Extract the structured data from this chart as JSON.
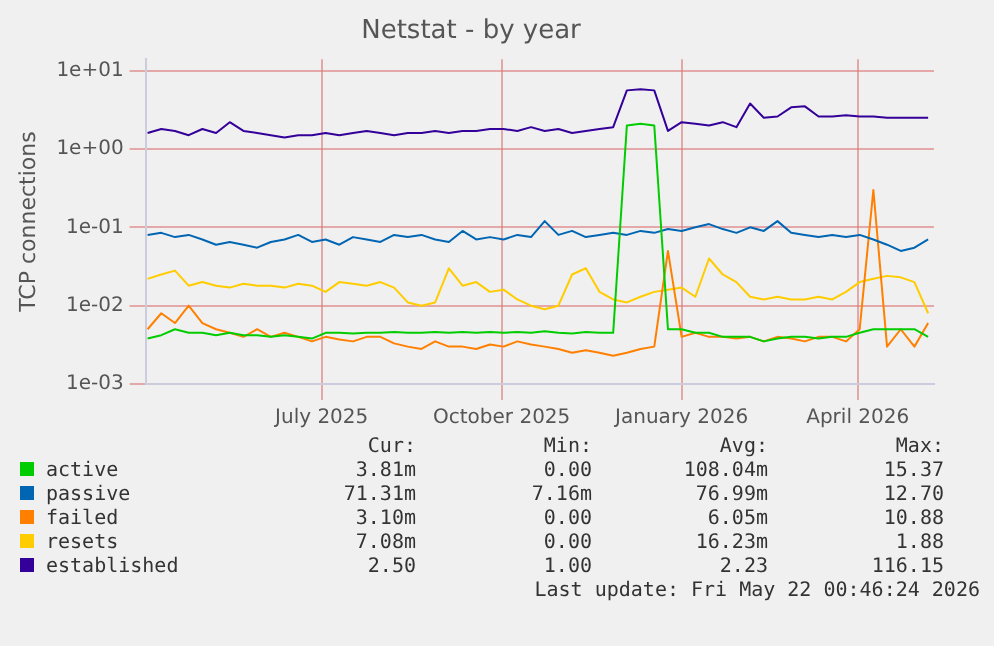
{
  "chart_data": {
    "type": "line",
    "title": "Netstat - by year",
    "ylabel": "TCP connections",
    "log": "y",
    "grid": true,
    "legend": "bottom",
    "marker": "none",
    "line_style": "solid",
    "xlim": [
      "2025-04-02",
      "2026-05-10"
    ],
    "xticks": [
      {
        "value": "2025-07-01",
        "label": "July 2025"
      },
      {
        "value": "2025-10-01",
        "label": "October 2025"
      },
      {
        "value": "2026-01-01",
        "label": "January 2026"
      },
      {
        "value": "2026-04-01",
        "label": "April 2026"
      }
    ],
    "ylim": [
      0.001,
      14
    ],
    "yticks": [
      {
        "value": 0.001,
        "label": "1e-03"
      },
      {
        "value": 0.01,
        "label": "1e-02"
      },
      {
        "value": 0.1,
        "label": "1e-01"
      },
      {
        "value": 1,
        "label": "1e+00"
      },
      {
        "value": 10,
        "label": "1e+01"
      }
    ],
    "x": [
      "2025-04-03",
      "2025-04-10",
      "2025-04-17",
      "2025-04-24",
      "2025-05-01",
      "2025-05-08",
      "2025-05-15",
      "2025-05-22",
      "2025-05-29",
      "2025-06-05",
      "2025-06-12",
      "2025-06-19",
      "2025-06-26",
      "2025-07-03",
      "2025-07-10",
      "2025-07-17",
      "2025-07-24",
      "2025-07-31",
      "2025-08-07",
      "2025-08-14",
      "2025-08-21",
      "2025-08-28",
      "2025-09-04",
      "2025-09-11",
      "2025-09-18",
      "2025-09-25",
      "2025-10-02",
      "2025-10-09",
      "2025-10-16",
      "2025-10-23",
      "2025-10-30",
      "2025-11-06",
      "2025-11-13",
      "2025-11-20",
      "2025-11-27",
      "2025-12-04",
      "2025-12-11",
      "2025-12-18",
      "2025-12-25",
      "2026-01-01",
      "2026-01-08",
      "2026-01-15",
      "2026-01-22",
      "2026-01-29",
      "2026-02-05",
      "2026-02-12",
      "2026-02-19",
      "2026-02-26",
      "2026-03-05",
      "2026-03-12",
      "2026-03-19",
      "2026-03-26",
      "2026-04-02",
      "2026-04-09",
      "2026-04-16",
      "2026-04-23",
      "2026-04-30",
      "2026-05-07"
    ],
    "series": [
      {
        "name": "active",
        "color": "#00cc00",
        "values": [
          0.0038,
          0.0042,
          0.005,
          0.0045,
          0.0045,
          0.0042,
          0.0045,
          0.0042,
          0.0042,
          0.004,
          0.0042,
          0.004,
          0.0038,
          0.0045,
          0.0045,
          0.0044,
          0.0045,
          0.0045,
          0.0046,
          0.0045,
          0.0045,
          0.0046,
          0.0045,
          0.0046,
          0.0045,
          0.0046,
          0.0045,
          0.0046,
          0.0045,
          0.0047,
          0.0045,
          0.0044,
          0.0046,
          0.0045,
          0.0045,
          2.0,
          2.1,
          2.0,
          0.005,
          0.005,
          0.0045,
          0.0045,
          0.004,
          0.004,
          0.004,
          0.0035,
          0.0038,
          0.004,
          0.004,
          0.0038,
          0.004,
          0.004,
          0.0045,
          0.005,
          0.005,
          0.005,
          0.005,
          0.004
        ]
      },
      {
        "name": "passive",
        "color": "#0066b3",
        "values": [
          0.08,
          0.085,
          0.075,
          0.08,
          0.07,
          0.06,
          0.065,
          0.06,
          0.055,
          0.065,
          0.07,
          0.08,
          0.065,
          0.07,
          0.06,
          0.075,
          0.07,
          0.065,
          0.08,
          0.075,
          0.08,
          0.07,
          0.065,
          0.09,
          0.07,
          0.075,
          0.07,
          0.08,
          0.075,
          0.12,
          0.08,
          0.09,
          0.075,
          0.08,
          0.085,
          0.08,
          0.09,
          0.085,
          0.095,
          0.09,
          0.1,
          0.11,
          0.095,
          0.085,
          0.1,
          0.09,
          0.12,
          0.085,
          0.08,
          0.075,
          0.08,
          0.075,
          0.08,
          0.07,
          0.06,
          0.05,
          0.055,
          0.07
        ]
      },
      {
        "name": "failed",
        "color": "#ff8000",
        "values": [
          0.005,
          0.008,
          0.006,
          0.01,
          0.006,
          0.005,
          0.0045,
          0.004,
          0.005,
          0.004,
          0.0045,
          0.004,
          0.0035,
          0.004,
          0.0037,
          0.0035,
          0.004,
          0.004,
          0.0033,
          0.003,
          0.0028,
          0.0035,
          0.003,
          0.003,
          0.0028,
          0.0032,
          0.003,
          0.0035,
          0.0032,
          0.003,
          0.0028,
          0.0025,
          0.0027,
          0.0025,
          0.0023,
          0.0025,
          0.0028,
          0.003,
          0.05,
          0.004,
          0.0045,
          0.004,
          0.004,
          0.0038,
          0.004,
          0.0035,
          0.004,
          0.0038,
          0.0035,
          0.004,
          0.004,
          0.0035,
          0.005,
          0.3,
          0.003,
          0.005,
          0.003,
          0.006
        ]
      },
      {
        "name": "resets",
        "color": "#ffcc00",
        "values": [
          0.022,
          0.025,
          0.028,
          0.018,
          0.02,
          0.018,
          0.017,
          0.019,
          0.018,
          0.018,
          0.017,
          0.019,
          0.018,
          0.015,
          0.02,
          0.019,
          0.018,
          0.02,
          0.017,
          0.011,
          0.01,
          0.011,
          0.03,
          0.018,
          0.02,
          0.015,
          0.016,
          0.012,
          0.01,
          0.009,
          0.01,
          0.025,
          0.03,
          0.015,
          0.012,
          0.011,
          0.013,
          0.015,
          0.016,
          0.017,
          0.013,
          0.04,
          0.025,
          0.02,
          0.013,
          0.012,
          0.013,
          0.012,
          0.012,
          0.013,
          0.012,
          0.015,
          0.02,
          0.022,
          0.024,
          0.023,
          0.02,
          0.008
        ]
      },
      {
        "name": "established",
        "color": "#330099",
        "values": [
          1.6,
          1.8,
          1.7,
          1.5,
          1.8,
          1.6,
          2.2,
          1.7,
          1.6,
          1.5,
          1.4,
          1.5,
          1.5,
          1.6,
          1.5,
          1.6,
          1.7,
          1.6,
          1.5,
          1.6,
          1.6,
          1.7,
          1.6,
          1.7,
          1.7,
          1.8,
          1.8,
          1.7,
          1.9,
          1.7,
          1.8,
          1.6,
          1.7,
          1.8,
          1.9,
          5.6,
          5.8,
          5.6,
          1.7,
          2.2,
          2.1,
          2.0,
          2.2,
          1.9,
          3.8,
          2.5,
          2.6,
          3.4,
          3.5,
          2.6,
          2.6,
          2.7,
          2.6,
          2.6,
          2.5,
          2.5,
          2.5,
          2.5
        ]
      }
    ],
    "annotations": [
      "Cur:",
      "Min:",
      "Avg:",
      "Max:",
      "3.81m",
      "0.00",
      "108.04m",
      "15.37",
      "71.31m",
      "7.16m",
      "76.99m",
      "12.70",
      "3.10m",
      "0.00",
      "6.05m",
      "10.88",
      "7.08m",
      "0.00",
      "16.23m",
      "1.88",
      "2.50",
      "1.00",
      "2.23",
      "116.15",
      "Last update: Fri May 22 00:46:24 2026"
    ]
  }
}
